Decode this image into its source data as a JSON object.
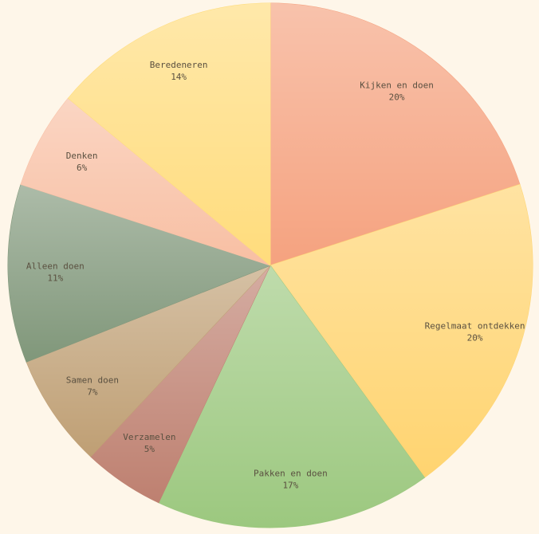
{
  "chart_data": {
    "type": "pie",
    "categories": [
      "Kijken en doen",
      "Regelmaat ontdekken",
      "Pakken en doen",
      "Verzamelen",
      "Samen doen",
      "Alleen doen",
      "Denken",
      "Beredeneren"
    ],
    "values": [
      20,
      20,
      17,
      5,
      7,
      11,
      6,
      14
    ],
    "value_labels": [
      "20%",
      "20%",
      "17%",
      "5%",
      "7%",
      "11%",
      "6%",
      "14%"
    ],
    "colors": [
      "#f5a27f",
      "#ffd470",
      "#9cc87f",
      "#be8070",
      "#bf9f74",
      "#80977a",
      "#f8bfa3",
      "#ffdc7c"
    ]
  }
}
